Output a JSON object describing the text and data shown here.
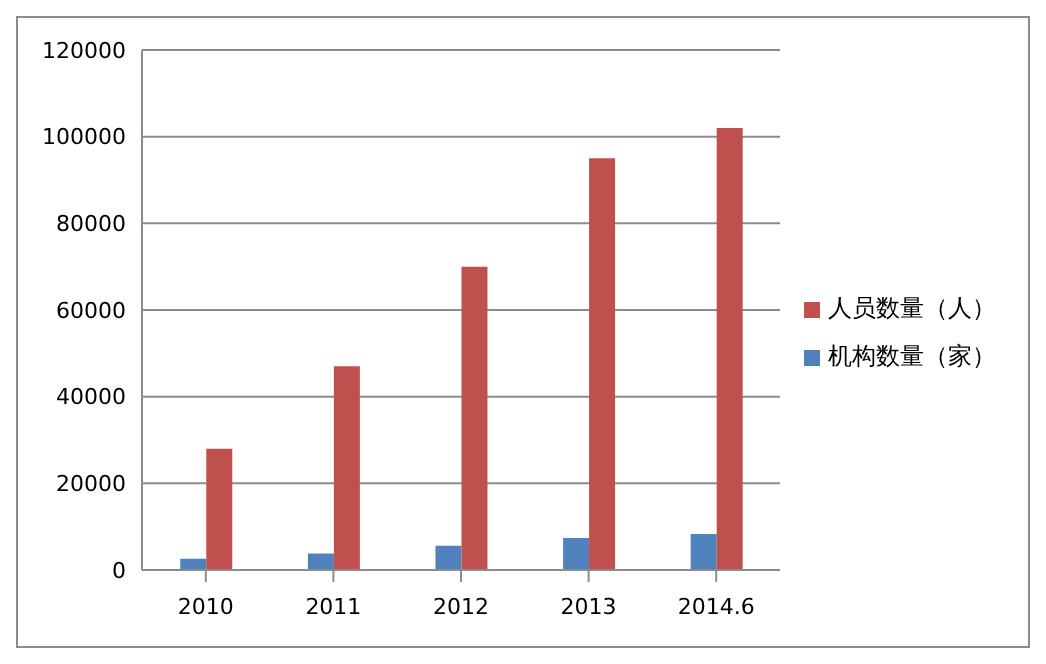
{
  "chart_data": {
    "type": "bar",
    "categories": [
      "2010",
      "2011",
      "2012",
      "2013",
      "2014.6"
    ],
    "series": [
      {
        "name": "机构数量（家）",
        "color": "#4f81bd",
        "values": [
          2600,
          3800,
          5600,
          7400,
          8300
        ]
      },
      {
        "name": "人员数量（人）",
        "color": "#c0504d",
        "values": [
          28000,
          47000,
          70000,
          95000,
          102000
        ]
      }
    ],
    "ylim": [
      0,
      120000
    ],
    "yticks": [
      0,
      20000,
      40000,
      60000,
      80000,
      100000,
      120000
    ],
    "grid": "y",
    "legend": "right"
  }
}
